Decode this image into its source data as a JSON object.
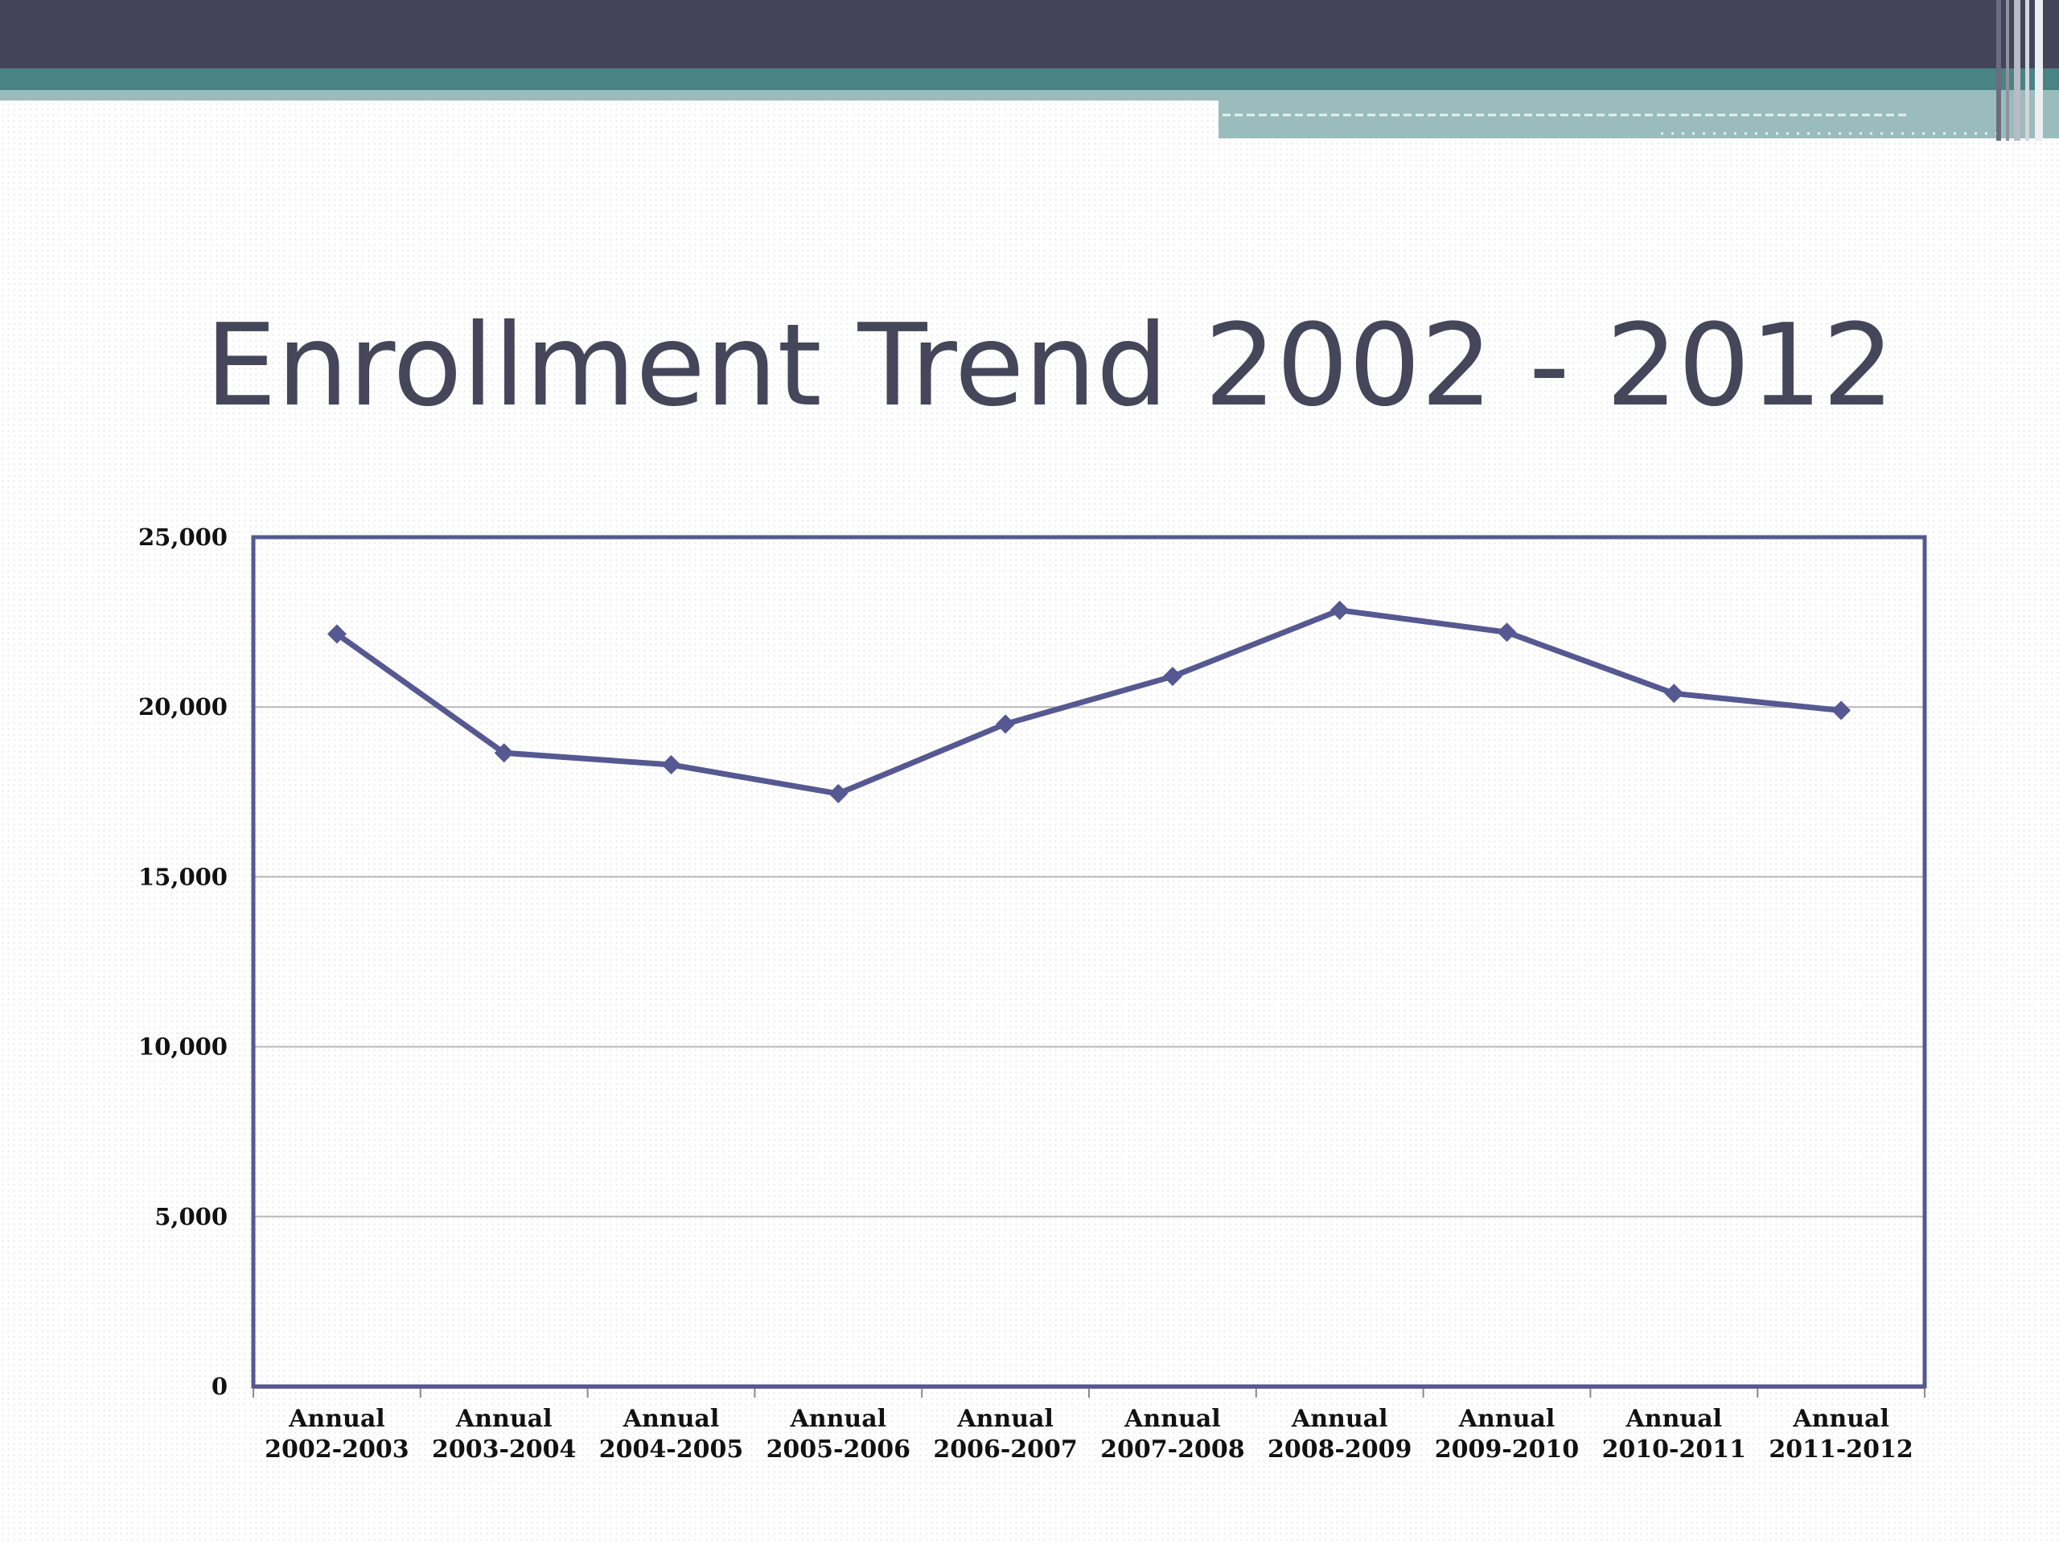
{
  "slide": {
    "title": "Enrollment Trend 2002 - 2012"
  },
  "theme": {
    "banner_dark": "#43445a",
    "banner_teal": "#4a8384",
    "banner_light_teal": "#9bbcbc",
    "title_color": "#454659",
    "series_color": "#565891",
    "grid_color": "#b8b8b8"
  },
  "chart_data": {
    "type": "line",
    "title": "",
    "xlabel": "",
    "ylabel": "",
    "categories": [
      [
        "Annual",
        "2002-2003"
      ],
      [
        "Annual",
        "2003-2004"
      ],
      [
        "Annual",
        "2004-2005"
      ],
      [
        "Annual",
        "2005-2006"
      ],
      [
        "Annual",
        "2006-2007"
      ],
      [
        "Annual",
        "2007-2008"
      ],
      [
        "Annual",
        "2008-2009"
      ],
      [
        "Annual",
        "2009-2010"
      ],
      [
        "Annual",
        "2010-2011"
      ],
      [
        "Annual",
        "2011-2012"
      ]
    ],
    "series": [
      {
        "values": [
          22150,
          18650,
          18300,
          17450,
          19500,
          20900,
          22850,
          22200,
          20400,
          19900
        ],
        "marker": "diamond"
      }
    ],
    "ylim": [
      0,
      25000
    ],
    "yticks": [
      0,
      5000,
      10000,
      15000,
      20000,
      25000
    ],
    "ytick_labels": [
      "0",
      "5,000",
      "10,000",
      "15,000",
      "20,000",
      "25,000"
    ],
    "grid": true,
    "legend": "none"
  }
}
